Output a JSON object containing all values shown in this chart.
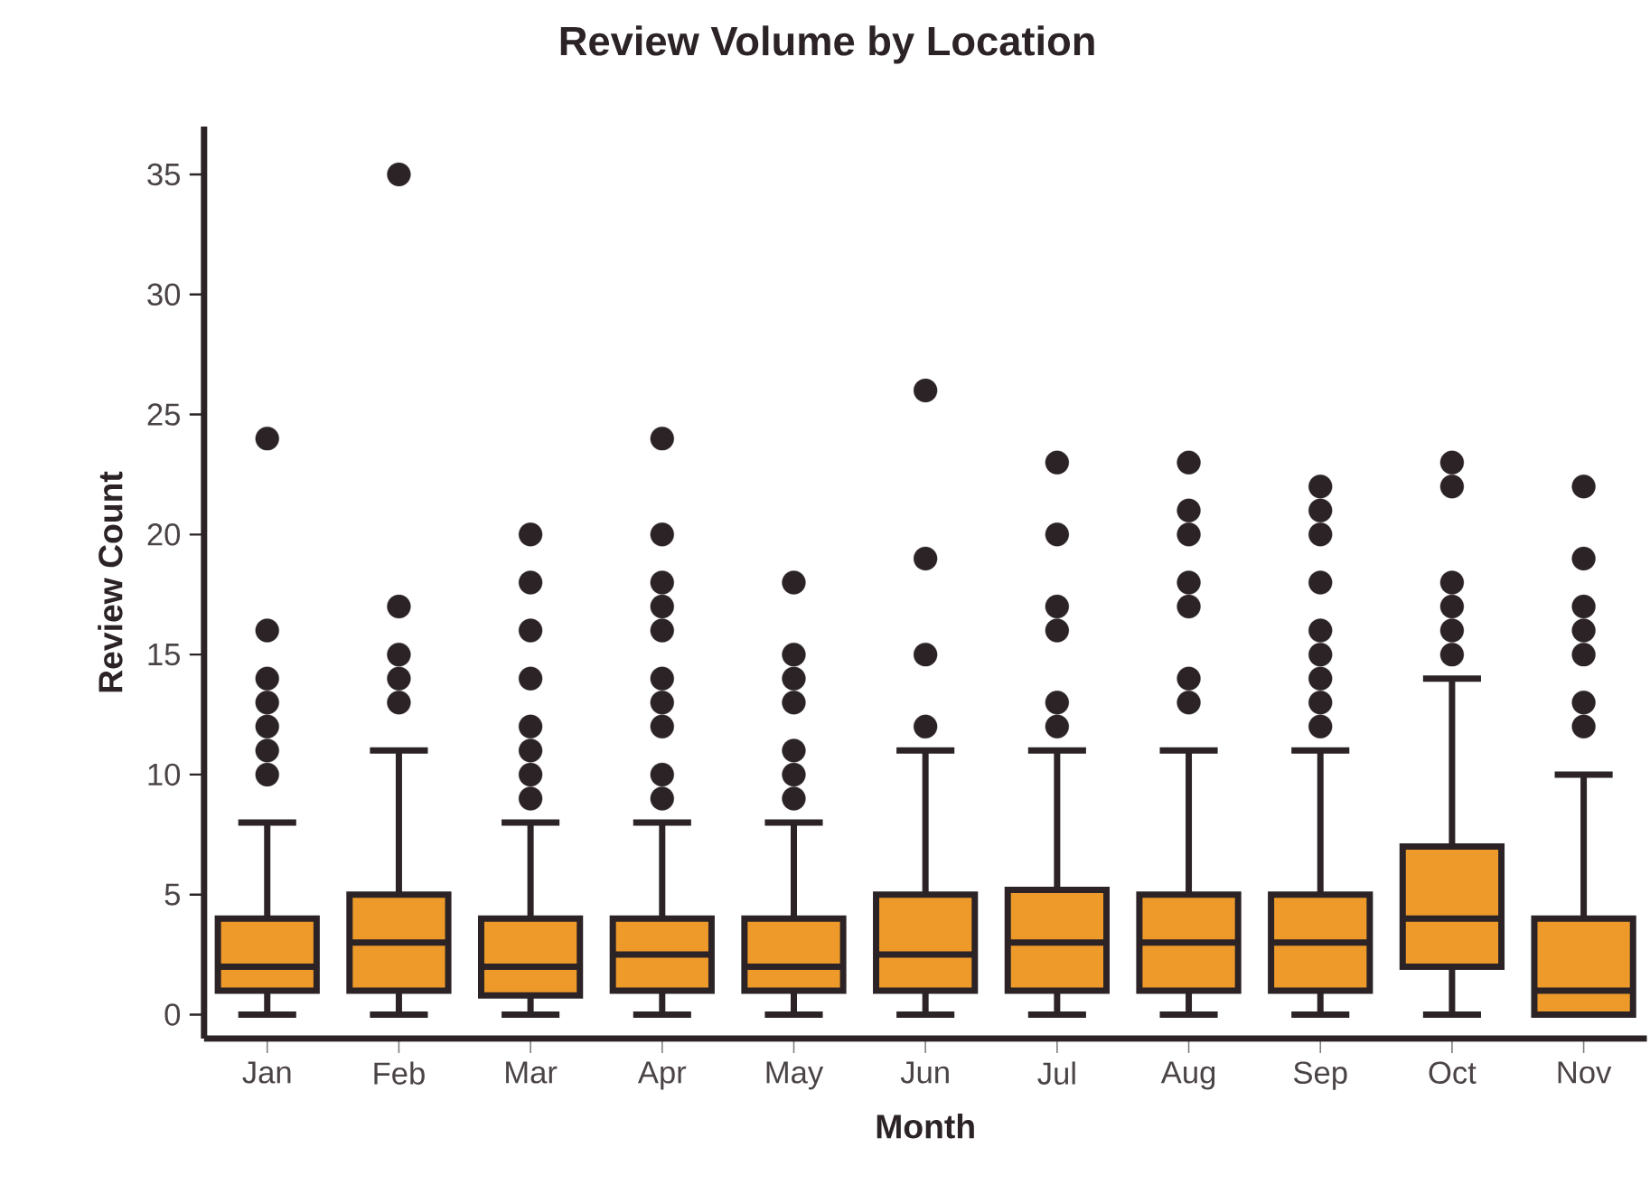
{
  "chart_data": {
    "type": "box",
    "title": "Review Volume by Location",
    "xlabel": "Month",
    "ylabel": "Review Count",
    "categories": [
      "Jan",
      "Feb",
      "Mar",
      "Apr",
      "May",
      "Jun",
      "Jul",
      "Aug",
      "Sep",
      "Oct",
      "Nov"
    ],
    "ylim": [
      -1,
      37
    ],
    "yticks": [
      0,
      5,
      10,
      15,
      20,
      25,
      30,
      35
    ],
    "grid": false,
    "marker": "circle",
    "series": [
      {
        "color": "#ee9a2a",
        "boxes": [
          {
            "low": 0,
            "q1": 1,
            "median": 2,
            "q3": 4,
            "high": 8,
            "outliers": [
              10,
              11,
              12,
              13,
              14,
              16,
              24
            ]
          },
          {
            "low": 0,
            "q1": 1,
            "median": 3,
            "q3": 5,
            "high": 11,
            "outliers": [
              13,
              14,
              15,
              17,
              35
            ]
          },
          {
            "low": 0,
            "q1": 0.8,
            "median": 2,
            "q3": 4,
            "high": 8,
            "outliers": [
              9,
              10,
              11,
              12,
              14,
              16,
              18,
              20
            ]
          },
          {
            "low": 0,
            "q1": 1,
            "median": 2.5,
            "q3": 4,
            "high": 8,
            "outliers": [
              9,
              10,
              12,
              13,
              14,
              16,
              17,
              18,
              20,
              24
            ]
          },
          {
            "low": 0,
            "q1": 1,
            "median": 2,
            "q3": 4,
            "high": 8,
            "outliers": [
              9,
              10,
              11,
              13,
              14,
              15,
              18
            ]
          },
          {
            "low": 0,
            "q1": 1,
            "median": 2.5,
            "q3": 5,
            "high": 11,
            "outliers": [
              12,
              15,
              19,
              26
            ]
          },
          {
            "low": 0,
            "q1": 1,
            "median": 3,
            "q3": 5.2,
            "high": 11,
            "outliers": [
              12,
              13,
              16,
              17,
              20,
              23
            ]
          },
          {
            "low": 0,
            "q1": 1,
            "median": 3,
            "q3": 5,
            "high": 11,
            "outliers": [
              13,
              14,
              17,
              18,
              20,
              21,
              23
            ]
          },
          {
            "low": 0,
            "q1": 1,
            "median": 3,
            "q3": 5,
            "high": 11,
            "outliers": [
              12,
              13,
              14,
              15,
              16,
              18,
              20,
              21,
              22
            ]
          },
          {
            "low": 0,
            "q1": 2,
            "median": 4,
            "q3": 7,
            "high": 14,
            "outliers": [
              15,
              16,
              17,
              18,
              22,
              23
            ]
          },
          {
            "low": 0,
            "q1": 0,
            "median": 1,
            "q3": 4,
            "high": 10,
            "outliers": [
              12,
              13,
              15,
              16,
              17,
              19,
              22
            ]
          }
        ]
      }
    ]
  }
}
